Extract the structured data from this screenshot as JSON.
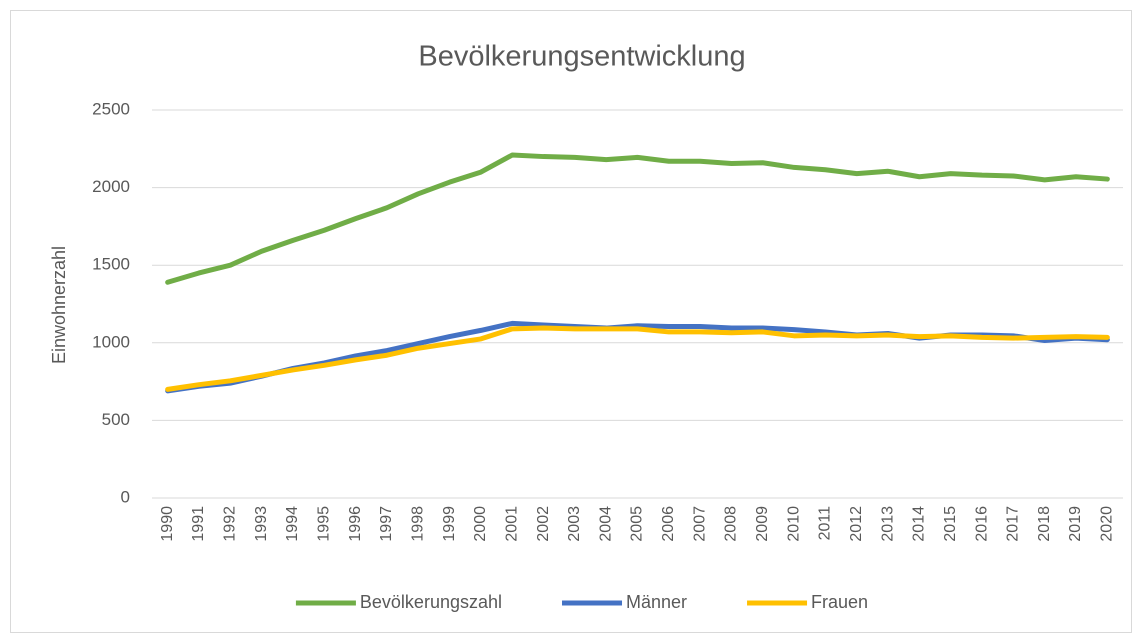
{
  "chart_data": {
    "type": "line",
    "title": "Bevölkerungsentwicklung",
    "y_label": "Einwohnerzahl",
    "categories": [
      "1990",
      "1991",
      "1992",
      "1993",
      "1994",
      "1995",
      "1996",
      "1997",
      "1998",
      "1999",
      "2000",
      "2001",
      "2002",
      "2003",
      "2004",
      "2005",
      "2006",
      "2007",
      "2008",
      "2009",
      "2010",
      "2011",
      "2012",
      "2013",
      "2014",
      "2015",
      "2016",
      "2017",
      "2018",
      "2019",
      "2020"
    ],
    "series": [
      {
        "name": "Bevölkerungszahl",
        "color": "#70ad47",
        "values": [
          1390,
          1450,
          1500,
          1590,
          1660,
          1725,
          1800,
          1870,
          1960,
          2035,
          2100,
          2210,
          2200,
          2195,
          2180,
          2195,
          2170,
          2170,
          2155,
          2160,
          2130,
          2115,
          2090,
          2105,
          2070,
          2090,
          2080,
          2075,
          2050,
          2070,
          2055
        ]
      },
      {
        "name": "Männer",
        "color": "#4472c4",
        "values": [
          690,
          720,
          740,
          785,
          835,
          870,
          915,
          950,
          995,
          1040,
          1080,
          1125,
          1115,
          1105,
          1095,
          1110,
          1105,
          1105,
          1095,
          1095,
          1085,
          1070,
          1050,
          1060,
          1030,
          1050,
          1050,
          1045,
          1015,
          1030,
          1020
        ]
      },
      {
        "name": "Frauen",
        "color": "#ffc000",
        "values": [
          700,
          730,
          755,
          790,
          825,
          855,
          890,
          920,
          965,
          995,
          1025,
          1090,
          1095,
          1090,
          1090,
          1090,
          1070,
          1070,
          1065,
          1070,
          1045,
          1050,
          1045,
          1050,
          1040,
          1045,
          1035,
          1030,
          1035,
          1040,
          1035
        ]
      }
    ],
    "ylim": [
      0,
      2500
    ],
    "yticks": [
      0,
      500,
      1000,
      1500,
      2000,
      2500
    ],
    "grid": true,
    "legend": "bottom"
  }
}
